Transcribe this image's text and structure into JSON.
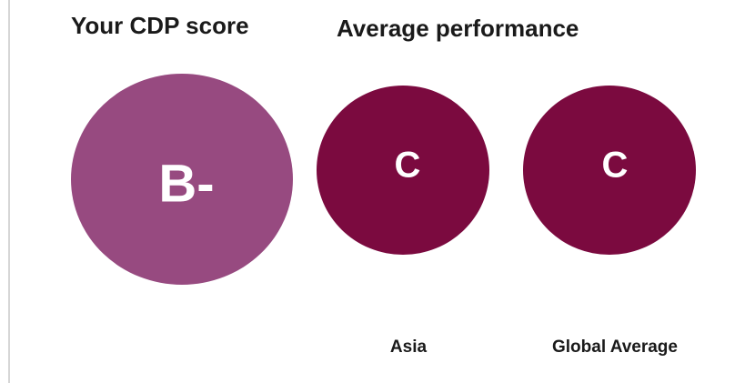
{
  "headings": {
    "your_score": "Your CDP score",
    "average": "Average performance"
  },
  "scores": [
    {
      "grade": "B-"
    },
    {
      "grade": "C",
      "label": "Asia"
    },
    {
      "grade": "C",
      "label": "Global Average"
    }
  ]
}
